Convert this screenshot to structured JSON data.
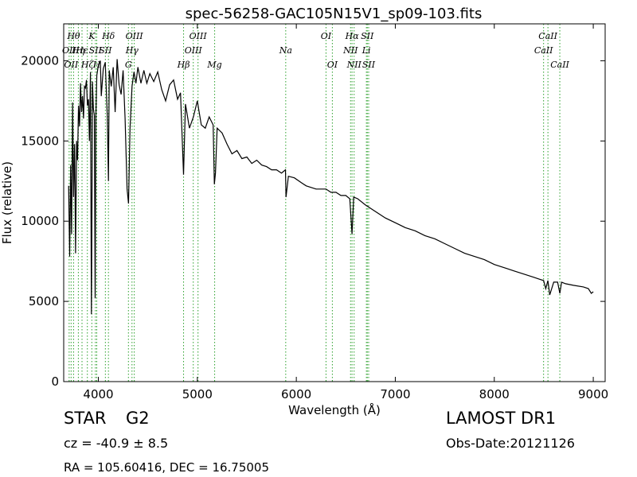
{
  "chart_data": {
    "type": "line",
    "title": "spec-56258-GAC105N15V1_sp09-103.fits",
    "xlabel": "Wavelength (Å)",
    "ylabel": "Flux (relative)",
    "xlim": [
      3650,
      9120
    ],
    "ylim": [
      0,
      22300
    ],
    "x_ticks": [
      4000,
      5000,
      6000,
      7000,
      8000,
      9000
    ],
    "y_ticks": [
      0,
      5000,
      10000,
      15000,
      20000
    ],
    "grid": false,
    "series_color": "#000000",
    "line_marker_color": "#2ca02c",
    "spectrum": {
      "x": [
        3700,
        3710,
        3720,
        3730,
        3740,
        3750,
        3760,
        3770,
        3780,
        3790,
        3800,
        3810,
        3820,
        3830,
        3840,
        3850,
        3860,
        3870,
        3880,
        3890,
        3900,
        3910,
        3920,
        3930,
        3935,
        3940,
        3950,
        3960,
        3968,
        3975,
        3985,
        4000,
        4020,
        4030,
        4050,
        4070,
        4090,
        4102,
        4110,
        4130,
        4150,
        4170,
        4190,
        4210,
        4230,
        4250,
        4270,
        4290,
        4305,
        4320,
        4340,
        4360,
        4380,
        4400,
        4430,
        4460,
        4490,
        4520,
        4560,
        4600,
        4640,
        4680,
        4720,
        4760,
        4800,
        4830,
        4861,
        4880,
        4920,
        4960,
        5000,
        5040,
        5080,
        5120,
        5160,
        5172,
        5183,
        5200,
        5250,
        5300,
        5350,
        5400,
        5450,
        5500,
        5550,
        5600,
        5650,
        5700,
        5750,
        5800,
        5850,
        5890,
        5896,
        5920,
        5980,
        6050,
        6100,
        6150,
        6200,
        6250,
        6300,
        6350,
        6400,
        6450,
        6500,
        6540,
        6563,
        6580,
        6620,
        6700,
        6800,
        6900,
        7000,
        7100,
        7200,
        7300,
        7400,
        7500,
        7600,
        7700,
        7800,
        7900,
        8000,
        8100,
        8200,
        8300,
        8400,
        8450,
        8498,
        8520,
        8542,
        8560,
        8600,
        8640,
        8662,
        8680,
        8720,
        8800,
        8900,
        8950,
        8980,
        9000
      ],
      "y": [
        12200,
        7800,
        13500,
        9200,
        17400,
        11500,
        14800,
        8000,
        15000,
        13800,
        17200,
        15900,
        18600,
        16800,
        17800,
        16400,
        18400,
        18300,
        18800,
        17200,
        17600,
        15000,
        19300,
        4200,
        9500,
        18700,
        17000,
        16600,
        5200,
        16500,
        19100,
        19700,
        20000,
        17800,
        19500,
        19900,
        16600,
        12500,
        19400,
        18400,
        19600,
        16800,
        20100,
        18500,
        17900,
        19400,
        16400,
        12000,
        11100,
        15800,
        18400,
        19300,
        18600,
        19600,
        18600,
        19400,
        18600,
        19200,
        18700,
        19300,
        18200,
        17500,
        18500,
        18800,
        17600,
        18000,
        12900,
        17300,
        15800,
        16500,
        17500,
        16000,
        15800,
        16500,
        16000,
        12300,
        13000,
        15800,
        15500,
        14800,
        14200,
        14400,
        13900,
        14000,
        13600,
        13800,
        13500,
        13400,
        13200,
        13200,
        13000,
        13200,
        11500,
        12800,
        12700,
        12400,
        12200,
        12100,
        12000,
        12000,
        12000,
        11800,
        11800,
        11600,
        11600,
        11400,
        9200,
        11500,
        11400,
        11000,
        10600,
        10200,
        9900,
        9600,
        9400,
        9100,
        8900,
        8600,
        8300,
        8000,
        7800,
        7600,
        7300,
        7100,
        6900,
        6700,
        6500,
        6400,
        6300,
        5800,
        6300,
        5400,
        6200,
        6200,
        5500,
        6200,
        6100,
        6000,
        5900,
        5800,
        5500,
        5600
      ]
    },
    "lines": [
      {
        "w": 3705,
        "label": "OII",
        "row": 1
      },
      {
        "w": 3725,
        "label": "OII",
        "row": 2
      },
      {
        "w": 3750,
        "label": "Hθ",
        "row": 0
      },
      {
        "w": 3798,
        "label": "Hη",
        "row": 1
      },
      {
        "w": 3835,
        "label": "Hε",
        "row": 1
      },
      {
        "w": 3889,
        "label": "Hζ",
        "row": 2
      },
      {
        "w": 3934,
        "label": "K",
        "row": 0
      },
      {
        "w": 3970,
        "label": "SII",
        "row": 1
      },
      {
        "w": 3984,
        "label": "H",
        "row": 2
      },
      {
        "w": 4071,
        "label": "SII",
        "row": 1
      },
      {
        "w": 4102,
        "label": "Hδ",
        "row": 0
      },
      {
        "w": 4304,
        "label": "G",
        "row": 2
      },
      {
        "w": 4340,
        "label": "Hγ",
        "row": 1
      },
      {
        "w": 4363,
        "label": "OIII",
        "row": 0
      },
      {
        "w": 4861,
        "label": "Hβ",
        "row": 2
      },
      {
        "w": 4959,
        "label": "OIII",
        "row": 1
      },
      {
        "w": 5007,
        "label": "OIII",
        "row": 0
      },
      {
        "w": 5175,
        "label": "Mg",
        "row": 2
      },
      {
        "w": 5893,
        "label": "Na",
        "row": 1
      },
      {
        "w": 6300,
        "label": "OI",
        "row": 0
      },
      {
        "w": 6364,
        "label": "OI",
        "row": 2
      },
      {
        "w": 6548,
        "label": "NII",
        "row": 1
      },
      {
        "w": 6563,
        "label": "Hα",
        "row": 0
      },
      {
        "w": 6584,
        "label": "NII",
        "row": 2
      },
      {
        "w": 6708,
        "label": "Li",
        "row": 1
      },
      {
        "w": 6717,
        "label": "SII",
        "row": 0
      },
      {
        "w": 6731,
        "label": "SII",
        "row": 2
      },
      {
        "w": 8498,
        "label": "CaII",
        "row": 1
      },
      {
        "w": 8542,
        "label": "CaII",
        "row": 0
      },
      {
        "w": 8662,
        "label": "CaII",
        "row": 2
      }
    ]
  },
  "footer": {
    "object_class": "STAR",
    "subclass": "G2",
    "cz": "cz = -40.9 ± 8.5",
    "coords": "RA = 105.60416, DEC = 16.75005",
    "survey": "LAMOST DR1",
    "obs_date": "Obs-Date:20121126"
  }
}
